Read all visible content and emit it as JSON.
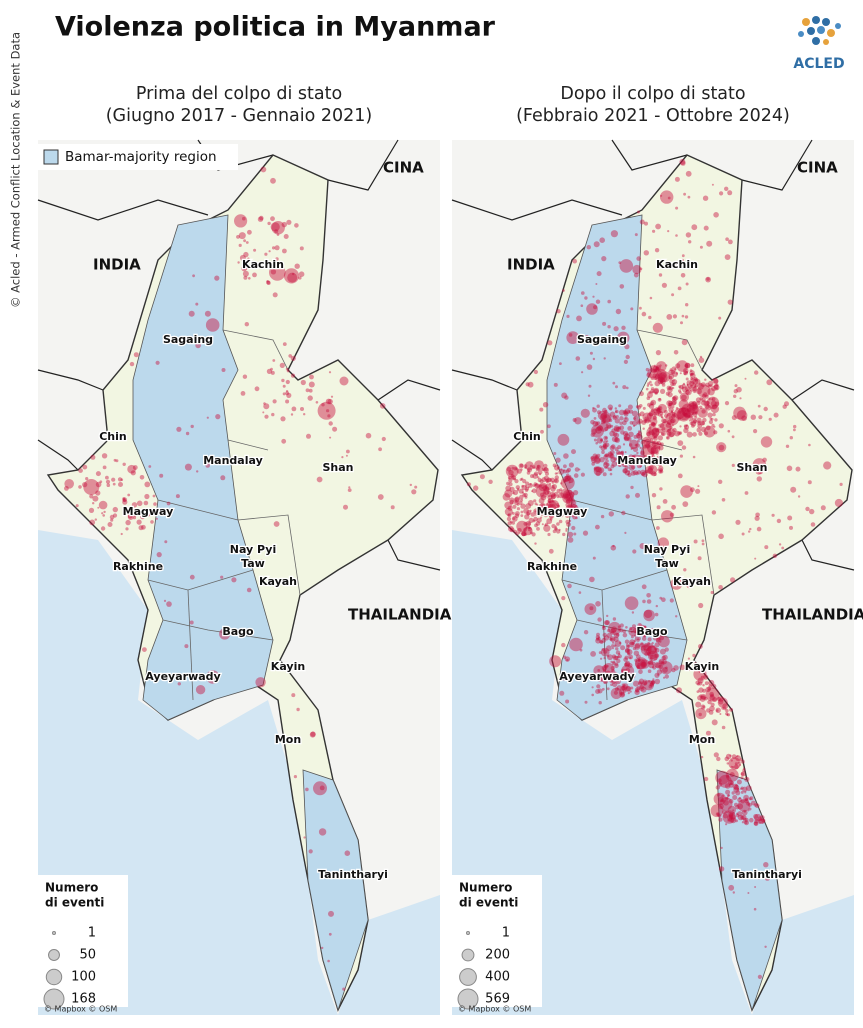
{
  "title": "Violenza politica in Myanmar",
  "side_credit": "© Acled - Armed Conflict Location & Event Data",
  "logo": "ACLED",
  "maps": [
    {
      "heading": [
        "Prima del colpo di stato",
        "(Giugno 2017 - Gennaio 2021)"
      ],
      "region_legend": "Bamar-majority region",
      "countries": [
        "INDIA",
        "CINA",
        "THAILANDIA"
      ],
      "regions": [
        "Kachin",
        "Sagaing",
        "Chin",
        "Mandalay",
        "Shan",
        "Magway",
        "Nay Pyi",
        "Taw",
        "Rakhine",
        "Kayah",
        "Bago",
        "Ayeyarwady",
        "Kayin",
        "Mon",
        "Tanintharyi"
      ],
      "size_legend": {
        "title": [
          "Numero",
          "di eventi"
        ],
        "values": [
          1,
          50,
          100,
          168
        ]
      },
      "attribution": "© Mapbox © OSM"
    },
    {
      "heading": [
        "Dopo il colpo di stato",
        "(Febbraio 2021 - Ottobre 2024)"
      ],
      "countries": [
        "INDIA",
        "CINA",
        "THAILANDIA"
      ],
      "regions": [
        "Kachin",
        "Sagaing",
        "Chin",
        "Mandalay",
        "Shan",
        "Magway",
        "Nay Pyi",
        "Taw",
        "Rakhine",
        "Kayah",
        "Bago",
        "Ayeyarwady",
        "Kayin",
        "Mon",
        "Tanintharyi"
      ],
      "size_legend": {
        "title": [
          "Numero",
          "di eventi"
        ],
        "values": [
          1,
          200,
          400,
          569
        ]
      },
      "attribution": "© Mapbox © OSM"
    }
  ]
}
